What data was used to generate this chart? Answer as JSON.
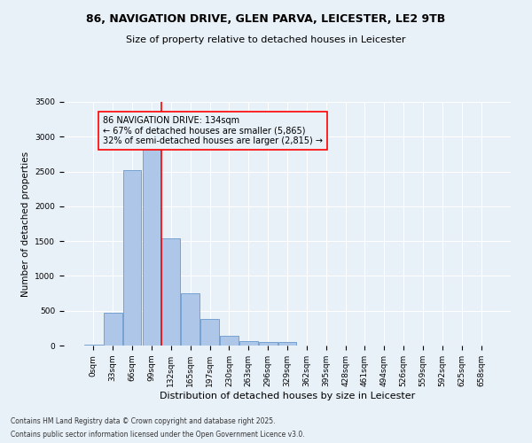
{
  "title": "86, NAVIGATION DRIVE, GLEN PARVA, LEICESTER, LE2 9TB",
  "subtitle": "Size of property relative to detached houses in Leicester",
  "xlabel": "Distribution of detached houses by size in Leicester",
  "ylabel": "Number of detached properties",
  "footer1": "Contains HM Land Registry data © Crown copyright and database right 2025.",
  "footer2": "Contains public sector information licensed under the Open Government Licence v3.0.",
  "bar_labels": [
    "0sqm",
    "33sqm",
    "66sqm",
    "99sqm",
    "132sqm",
    "165sqm",
    "197sqm",
    "230sqm",
    "263sqm",
    "296sqm",
    "329sqm",
    "362sqm",
    "395sqm",
    "428sqm",
    "461sqm",
    "494sqm",
    "526sqm",
    "559sqm",
    "592sqm",
    "625sqm",
    "658sqm"
  ],
  "bar_values": [
    15,
    470,
    2520,
    2840,
    1540,
    750,
    380,
    135,
    65,
    45,
    45,
    0,
    0,
    0,
    0,
    0,
    0,
    0,
    0,
    0,
    0
  ],
  "bar_color": "#aec6e8",
  "bar_edge_color": "#6699cc",
  "bg_color": "#e8f0f8",
  "grid_color": "#ffffff",
  "vline_color": "red",
  "annotation_text": "86 NAVIGATION DRIVE: 134sqm\n← 67% of detached houses are smaller (5,865)\n32% of semi-detached houses are larger (2,815) →",
  "annotation_box_color": "red",
  "ylim": [
    0,
    3500
  ],
  "yticks": [
    0,
    500,
    1000,
    1500,
    2000,
    2500,
    3000,
    3500
  ],
  "title_fontsize": 9,
  "subtitle_fontsize": 8,
  "ylabel_fontsize": 7.5,
  "xlabel_fontsize": 8,
  "tick_fontsize": 6.5,
  "annotation_fontsize": 7,
  "footer_fontsize": 5.5
}
